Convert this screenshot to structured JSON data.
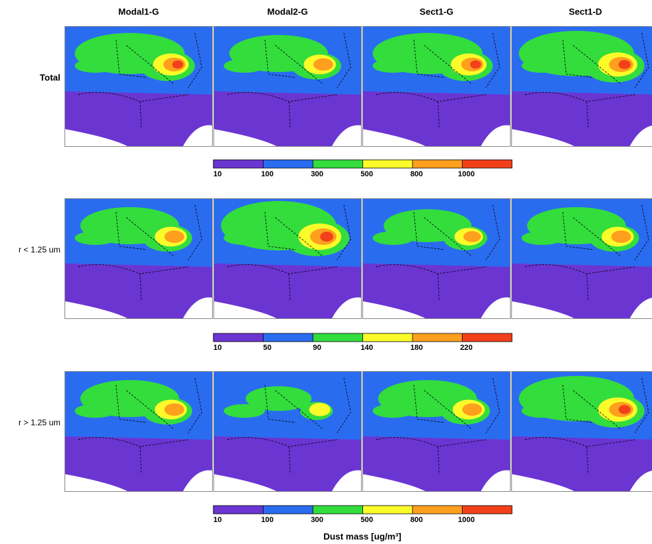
{
  "columns": [
    "Modal1-G",
    "Modal2-G",
    "Sect1-G",
    "Sect1-D"
  ],
  "rows": [
    {
      "label": "Total",
      "colorbar": {
        "ticks": [
          10,
          100,
          300,
          500,
          800,
          1000
        ],
        "colors": [
          "#6b35d2",
          "#2a6cf0",
          "#33dd3c",
          "#fbfb2a",
          "#ff9f1e",
          "#f2401a"
        ]
      }
    },
    {
      "label": "r < 1.25 um",
      "colorbar": {
        "ticks": [
          10,
          50,
          90,
          140,
          180,
          220
        ],
        "colors": [
          "#6b35d2",
          "#2a6cf0",
          "#33dd3c",
          "#fbfb2a",
          "#ff9f1e",
          "#f2401a"
        ]
      }
    },
    {
      "label": "r > 1.25 um",
      "colorbar": {
        "ticks": [
          10,
          100,
          300,
          500,
          800,
          1000
        ],
        "colors": [
          "#6b35d2",
          "#2a6cf0",
          "#33dd3c",
          "#fbfb2a",
          "#ff9f1e",
          "#f2401a"
        ]
      }
    }
  ],
  "colorbar_label": "Dust mass [ug/m³]"
}
